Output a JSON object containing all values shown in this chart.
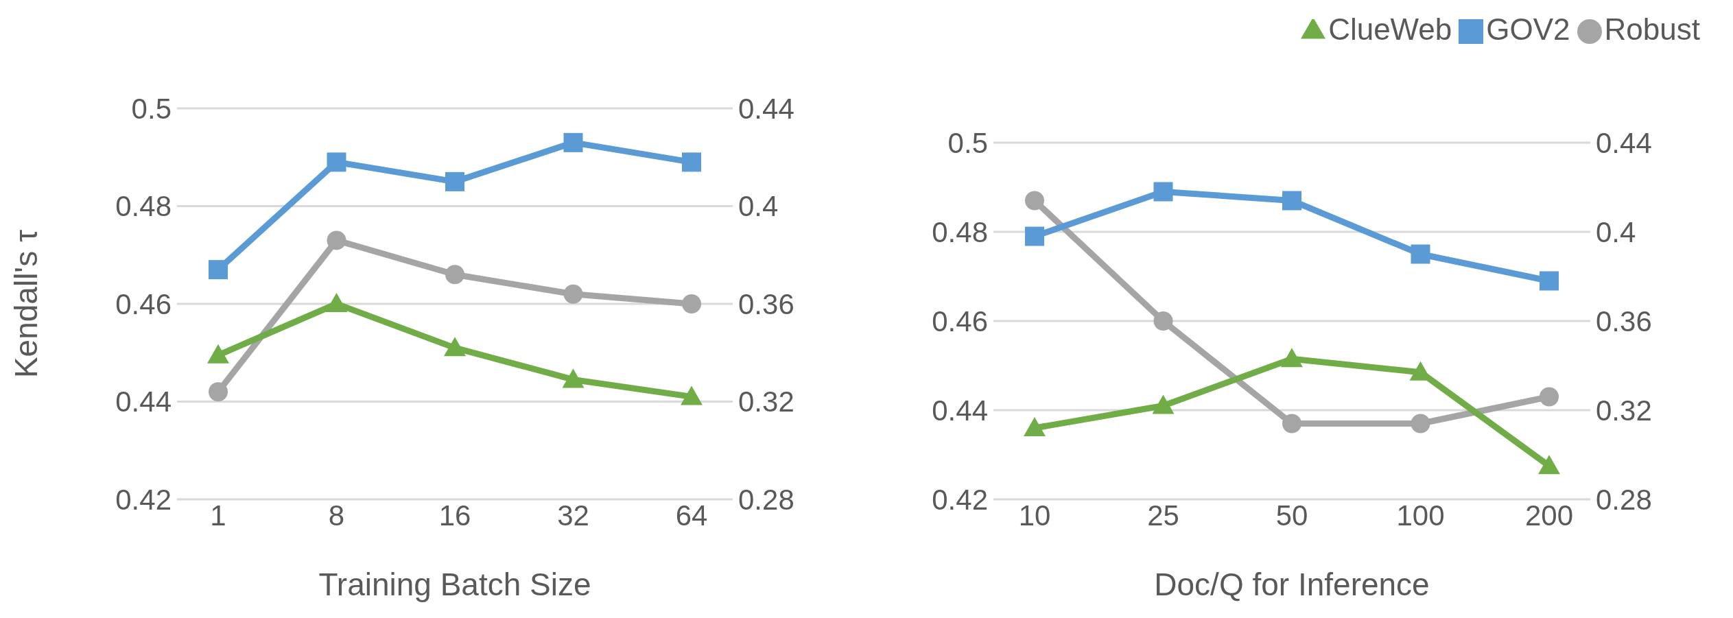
{
  "chart_data": [
    {
      "type": "line",
      "xlabel": "Training Batch Size",
      "ylabel": "Kendall's τ",
      "categories": [
        "1",
        "8",
        "16",
        "32",
        "64"
      ],
      "ylim": [
        0.42,
        0.5
      ],
      "yticks": [
        0.42,
        0.44,
        0.46,
        0.48,
        0.5
      ],
      "y2lim": [
        0.28,
        0.44
      ],
      "y2ticks": [
        0.28,
        0.32,
        0.36,
        0.4,
        0.44
      ],
      "grid": "y",
      "legend": false,
      "series": [
        {
          "color": "#a5a5a5",
          "marker": "circle",
          "values": [
            0.442,
            0.473,
            0.466,
            0.462,
            0.46
          ]
        },
        {
          "color": "#5b9bd5",
          "marker": "square",
          "values": [
            0.467,
            0.489,
            0.485,
            0.493,
            0.489
          ]
        },
        {
          "color": "#70ad47",
          "marker": "triangle",
          "axis": "y2",
          "values": [
            0.339,
            0.36,
            0.342,
            0.329,
            0.322
          ]
        }
      ]
    },
    {
      "type": "line",
      "xlabel": "Doc/Q for Inference",
      "categories": [
        "10",
        "25",
        "50",
        "100",
        "200"
      ],
      "ylim": [
        0.42,
        0.5
      ],
      "yticks": [
        0.42,
        0.44,
        0.46,
        0.48,
        0.5
      ],
      "y2lim": [
        0.28,
        0.44
      ],
      "y2ticks": [
        0.28,
        0.32,
        0.36,
        0.4,
        0.44
      ],
      "grid": "y",
      "legend": "top right",
      "series": [
        {
          "name": "Robust",
          "color": "#a5a5a5",
          "marker": "circle",
          "values": [
            0.487,
            0.46,
            0.437,
            0.437,
            0.443
          ]
        },
        {
          "name": "GOV2",
          "color": "#5b9bd5",
          "marker": "square",
          "values": [
            0.479,
            0.489,
            0.487,
            0.475,
            0.469
          ]
        },
        {
          "name": "ClueWeb",
          "color": "#70ad47",
          "marker": "triangle",
          "axis": "y2",
          "values": [
            0.312,
            0.322,
            0.343,
            0.337,
            0.295
          ]
        }
      ]
    }
  ]
}
